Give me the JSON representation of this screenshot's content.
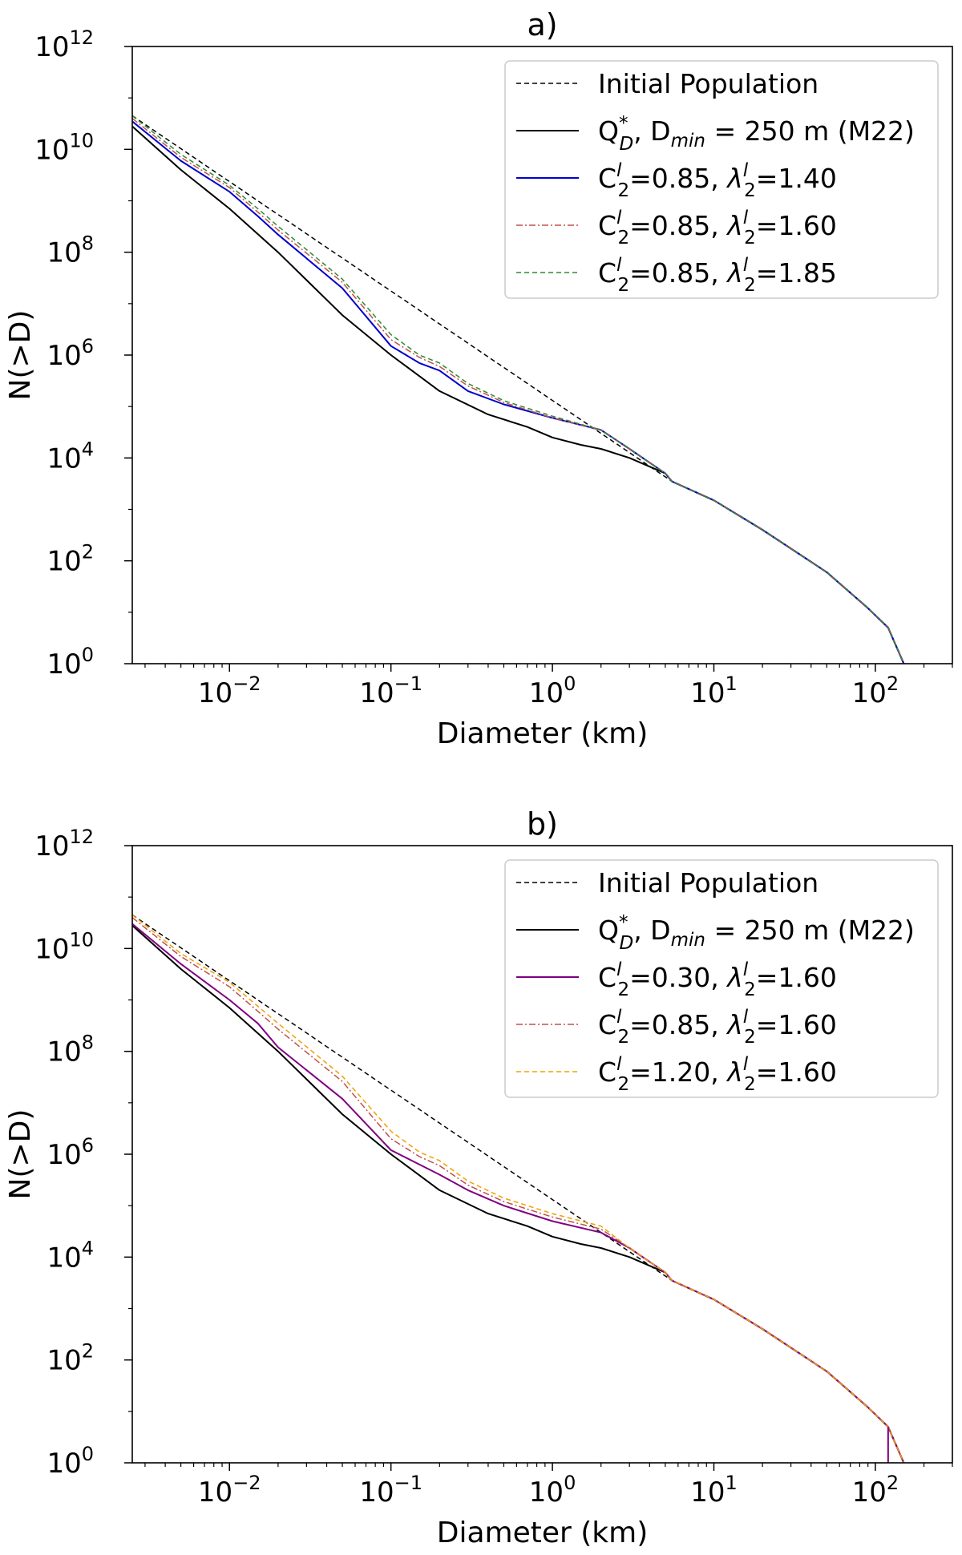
{
  "chart_data": [
    {
      "type": "line",
      "title": "a)",
      "xlabel": "Diameter (km)",
      "ylabel": "N(>D)",
      "xscale": "log",
      "yscale": "log",
      "xlim": [
        0.0025,
        300
      ],
      "ylim": [
        1,
        1000000000000
      ],
      "xtick_exponents": [
        -2,
        -1,
        0,
        1,
        2
      ],
      "ytick_exponents": [
        0,
        2,
        4,
        6,
        8,
        10,
        12
      ],
      "tick_base": "10",
      "legend_position": "top-right",
      "series": [
        {
          "name": "Initial Population",
          "legend_parts": [
            "Initial Population"
          ],
          "color": "#000000",
          "dash": "6,4",
          "width": 1.5,
          "x": [
            0.0025,
            5.5
          ],
          "y": [
            45000000000,
            3500
          ]
        },
        {
          "name": "Q*D, Dmin = 250 m (M22)",
          "legend_parts": [
            "Q",
            "*",
            "D",
            ", D",
            "min",
            " = 250 m (M22)"
          ],
          "color": "#000000",
          "dash": "",
          "width": 2,
          "x": [
            0.0025,
            0.005,
            0.01,
            0.02,
            0.05,
            0.1,
            0.2,
            0.4,
            0.7,
            1.0,
            1.5,
            2.0,
            3.0,
            5.0
          ],
          "y": [
            28000000000,
            4000000000,
            700000000,
            100000000,
            6000000,
            1000000,
            200000,
            70000,
            40000,
            25000,
            18000,
            15000,
            10000,
            5000
          ]
        },
        {
          "name": "C2l=0.85, λ2l=1.40",
          "legend_parts": [
            "C",
            "l",
            "2",
            "=0.85, ",
            "λ",
            "l",
            "2",
            "=1.40"
          ],
          "color": "#0000cc",
          "dash": "",
          "width": 2,
          "x": [
            0.0025,
            0.005,
            0.01,
            0.015,
            0.02,
            0.05,
            0.1,
            0.15,
            0.2,
            0.3,
            0.5,
            1.0,
            2.0,
            3.0,
            5.0
          ],
          "y": [
            35000000000,
            6000000000,
            1500000000,
            500000000,
            220000000,
            20000000,
            1500000,
            700000,
            500000,
            200000,
            110000,
            60000,
            35000,
            15000,
            5000
          ]
        },
        {
          "name": "C2l=0.85, λ2l=1.60",
          "legend_parts": [
            "C",
            "l",
            "2",
            "=0.85, ",
            "λ",
            "l",
            "2",
            "=1.60"
          ],
          "color": "#c0504d",
          "dash": "8,3,2,3",
          "width": 1.5,
          "x": [
            0.0025,
            0.005,
            0.01,
            0.015,
            0.02,
            0.05,
            0.1,
            0.15,
            0.2,
            0.3,
            0.5,
            1.0,
            2.0,
            3.0,
            5.0
          ],
          "y": [
            40000000000,
            7000000000,
            1800000000,
            600000000,
            270000000,
            26000000,
            2000000,
            900000,
            600000,
            250000,
            120000,
            60000,
            35000,
            15000,
            5000
          ]
        },
        {
          "name": "C2l=0.85, λ2l=1.85",
          "legend_parts": [
            "C",
            "l",
            "2",
            "=0.85, ",
            "λ",
            "l",
            "2",
            "=1.85"
          ],
          "color": "#2e8b2e",
          "dash": "6,4",
          "width": 1.5,
          "x": [
            0.0025,
            0.005,
            0.01,
            0.015,
            0.02,
            0.05,
            0.1,
            0.15,
            0.2,
            0.3,
            0.5,
            1.0,
            2.0,
            3.0,
            5.0
          ],
          "y": [
            45000000000,
            8000000000,
            2000000000,
            700000000,
            320000000,
            30000000,
            2500000,
            1000000,
            700000,
            280000,
            130000,
            65000,
            35000,
            15000,
            5000
          ]
        }
      ],
      "shared_tail": {
        "x": [
          5.5,
          10,
          20,
          50,
          90,
          120,
          150
        ],
        "y": [
          3500,
          1500,
          400,
          60,
          12,
          5,
          1
        ]
      }
    },
    {
      "type": "line",
      "title": "b)",
      "xlabel": "Diameter (km)",
      "ylabel": "N(>D)",
      "xscale": "log",
      "yscale": "log",
      "xlim": [
        0.0025,
        300
      ],
      "ylim": [
        1,
        1000000000000
      ],
      "xtick_exponents": [
        -2,
        -1,
        0,
        1,
        2
      ],
      "ytick_exponents": [
        0,
        2,
        4,
        6,
        8,
        10,
        12
      ],
      "tick_base": "10",
      "legend_position": "top-right",
      "series": [
        {
          "name": "Initial Population",
          "legend_parts": [
            "Initial Population"
          ],
          "color": "#000000",
          "dash": "6,4",
          "width": 1.5,
          "x": [
            0.0025,
            5.5
          ],
          "y": [
            45000000000,
            3500
          ]
        },
        {
          "name": "Q*D, Dmin = 250 m (M22)",
          "legend_parts": [
            "Q",
            "*",
            "D",
            ", D",
            "min",
            " = 250 m (M22)"
          ],
          "color": "#000000",
          "dash": "",
          "width": 2,
          "x": [
            0.0025,
            0.005,
            0.01,
            0.02,
            0.05,
            0.1,
            0.2,
            0.4,
            0.7,
            1.0,
            1.5,
            2.0,
            3.0,
            5.0
          ],
          "y": [
            28000000000,
            4000000000,
            700000000,
            100000000,
            6000000,
            1000000,
            200000,
            70000,
            40000,
            25000,
            18000,
            15000,
            10000,
            5000
          ]
        },
        {
          "name": "C2l=0.30, λ2l=1.60",
          "legend_parts": [
            "C",
            "l",
            "2",
            "=0.30, ",
            "λ",
            "l",
            "2",
            "=1.60"
          ],
          "color": "#800080",
          "dash": "",
          "width": 2,
          "x": [
            0.0025,
            0.005,
            0.01,
            0.015,
            0.02,
            0.05,
            0.1,
            0.2,
            0.3,
            0.5,
            1.0,
            2.0,
            3.0,
            5.0
          ],
          "y": [
            30000000000,
            5000000000,
            1000000000,
            350000000,
            120000000,
            12000000,
            1200000,
            400000,
            200000,
            100000,
            50000,
            30000,
            15000,
            5000
          ]
        },
        {
          "name": "C2l=0.85, λ2l=1.60",
          "legend_parts": [
            "C",
            "l",
            "2",
            "=0.85, ",
            "λ",
            "l",
            "2",
            "=1.60"
          ],
          "color": "#c0504d",
          "dash": "8,3,2,3",
          "width": 1.5,
          "x": [
            0.0025,
            0.005,
            0.01,
            0.015,
            0.02,
            0.05,
            0.1,
            0.15,
            0.2,
            0.3,
            0.5,
            1.0,
            2.0,
            3.0,
            5.0
          ],
          "y": [
            40000000000,
            7000000000,
            1800000000,
            600000000,
            270000000,
            26000000,
            2000000,
            900000,
            600000,
            250000,
            120000,
            60000,
            35000,
            15000,
            5000
          ]
        },
        {
          "name": "C2l=1.20, λ2l=1.60",
          "legend_parts": [
            "C",
            "l",
            "2",
            "=1.20, ",
            "λ",
            "l",
            "2",
            "=1.60"
          ],
          "color": "#f0a000",
          "dash": "6,4",
          "width": 1.5,
          "x": [
            0.0025,
            0.005,
            0.01,
            0.015,
            0.02,
            0.05,
            0.1,
            0.15,
            0.2,
            0.3,
            0.5,
            1.0,
            2.0,
            3.0,
            5.0
          ],
          "y": [
            45000000000,
            8000000000,
            2200000000,
            750000000,
            350000000,
            33000000,
            2800000,
            1100000,
            750000,
            300000,
            140000,
            70000,
            40000,
            15000,
            5000
          ]
        }
      ],
      "shared_tail": {
        "x": [
          5.5,
          10,
          20,
          50,
          90,
          120,
          150
        ],
        "y": [
          3500,
          1500,
          400,
          60,
          12,
          5,
          1
        ]
      },
      "purple_drop": {
        "x": [
          120,
          120
        ],
        "y": [
          5,
          1
        ]
      }
    }
  ]
}
